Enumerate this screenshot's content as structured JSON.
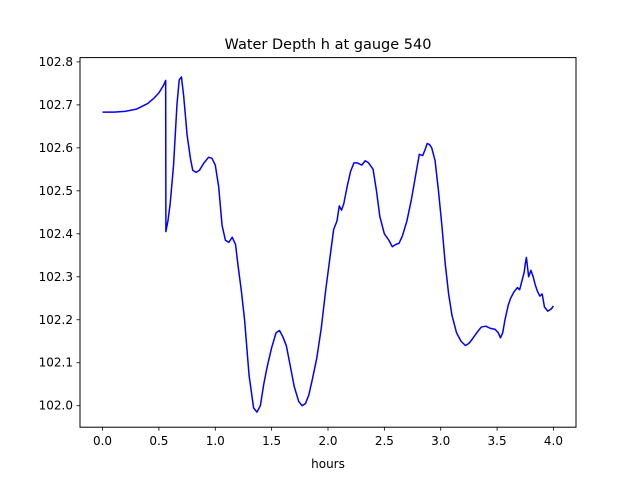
{
  "chart_data": {
    "type": "line",
    "title": "Water Depth h at gauge 540",
    "xlabel": "hours",
    "ylabel": "",
    "xlim": [
      -0.2,
      4.2
    ],
    "ylim": [
      101.95,
      102.81
    ],
    "grid": false,
    "x_ticks": [
      0.0,
      0.5,
      1.0,
      1.5,
      2.0,
      2.5,
      3.0,
      3.5,
      4.0
    ],
    "x_tick_labels": [
      "0.0",
      "0.5",
      "1.0",
      "1.5",
      "2.0",
      "2.5",
      "3.0",
      "3.5",
      "4.0"
    ],
    "y_ticks": [
      102.0,
      102.1,
      102.2,
      102.3,
      102.4,
      102.5,
      102.6,
      102.7,
      102.8
    ],
    "y_tick_labels": [
      "102.0",
      "102.1",
      "102.2",
      "102.3",
      "102.4",
      "102.5",
      "102.6",
      "102.7",
      "102.8"
    ],
    "series": [
      {
        "color": "#0000ff",
        "x": [
          0.0,
          0.1,
          0.2,
          0.3,
          0.4,
          0.45,
          0.5,
          0.54,
          0.56,
          0.562,
          0.58,
          0.6,
          0.63,
          0.66,
          0.68,
          0.7,
          0.72,
          0.75,
          0.78,
          0.8,
          0.83,
          0.86,
          0.9,
          0.94,
          0.97,
          1.0,
          1.03,
          1.06,
          1.09,
          1.12,
          1.15,
          1.18,
          1.2,
          1.23,
          1.26,
          1.3,
          1.34,
          1.37,
          1.4,
          1.43,
          1.46,
          1.5,
          1.54,
          1.57,
          1.6,
          1.63,
          1.66,
          1.7,
          1.74,
          1.77,
          1.8,
          1.83,
          1.86,
          1.9,
          1.94,
          1.98,
          2.02,
          2.05,
          2.08,
          2.1,
          2.12,
          2.14,
          2.17,
          2.2,
          2.23,
          2.26,
          2.3,
          2.33,
          2.36,
          2.4,
          2.43,
          2.46,
          2.5,
          2.54,
          2.57,
          2.6,
          2.63,
          2.66,
          2.7,
          2.74,
          2.78,
          2.81,
          2.84,
          2.86,
          2.88,
          2.9,
          2.92,
          2.95,
          2.98,
          3.01,
          3.04,
          3.07,
          3.1,
          3.14,
          3.18,
          3.22,
          3.25,
          3.28,
          3.32,
          3.36,
          3.4,
          3.44,
          3.48,
          3.51,
          3.53,
          3.55,
          3.57,
          3.6,
          3.62,
          3.65,
          3.68,
          3.7,
          3.72,
          3.74,
          3.75,
          3.76,
          3.78,
          3.8,
          3.82,
          3.84,
          3.86,
          3.88,
          3.9,
          3.92,
          3.95,
          3.98,
          4.0
        ],
        "y": [
          102.683,
          102.683,
          102.685,
          102.69,
          102.703,
          102.714,
          102.728,
          102.745,
          102.757,
          102.405,
          102.43,
          102.47,
          102.56,
          102.7,
          102.758,
          102.765,
          102.72,
          102.63,
          102.575,
          102.548,
          102.543,
          102.548,
          102.565,
          102.578,
          102.576,
          102.56,
          102.51,
          102.42,
          102.385,
          102.38,
          102.392,
          102.375,
          102.33,
          102.27,
          102.2,
          102.07,
          101.995,
          101.985,
          102.0,
          102.05,
          102.09,
          102.135,
          102.17,
          102.175,
          102.16,
          102.14,
          102.1,
          102.045,
          102.01,
          102.0,
          102.005,
          102.025,
          102.06,
          102.11,
          102.18,
          102.27,
          102.35,
          102.41,
          102.43,
          102.465,
          102.455,
          102.47,
          102.51,
          102.545,
          102.565,
          102.565,
          102.56,
          102.57,
          102.565,
          102.55,
          102.5,
          102.44,
          102.4,
          102.385,
          102.37,
          102.375,
          102.378,
          102.395,
          102.43,
          102.48,
          102.54,
          102.585,
          102.582,
          102.595,
          102.61,
          102.608,
          102.6,
          102.57,
          102.5,
          102.42,
          102.33,
          102.26,
          102.21,
          102.17,
          102.15,
          102.14,
          102.145,
          102.155,
          102.17,
          102.183,
          102.185,
          102.18,
          102.178,
          102.17,
          102.158,
          102.17,
          102.2,
          102.235,
          102.25,
          102.265,
          102.275,
          102.27,
          102.29,
          102.31,
          102.33,
          102.345,
          102.3,
          102.315,
          102.3,
          102.28,
          102.265,
          102.255,
          102.26,
          102.23,
          102.22,
          102.225,
          102.232
        ]
      }
    ]
  }
}
